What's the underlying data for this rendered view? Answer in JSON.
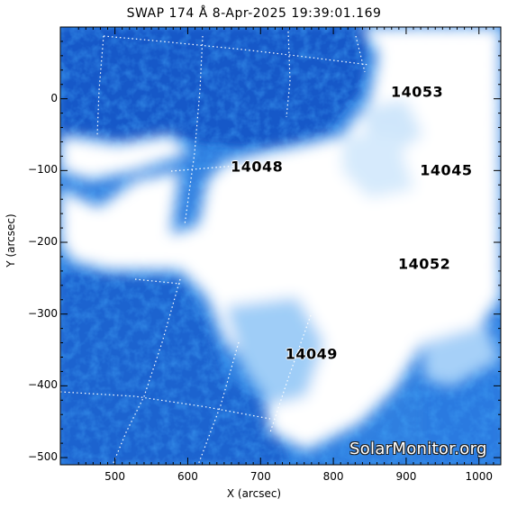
{
  "header": {
    "title": "SWAP 174 Å  8-Apr-2025 19:39:01.169"
  },
  "axes": {
    "xlabel": "X (arcsec)",
    "ylabel": "Y (arcsec)",
    "x_ticks": [
      "500",
      "600",
      "700",
      "800",
      "900",
      "1000"
    ],
    "y_ticks": [
      "0",
      "−100",
      "−200",
      "−300",
      "−400",
      "−500"
    ],
    "x_range": [
      425,
      1030
    ],
    "y_range": [
      -510,
      100
    ]
  },
  "regions": [
    {
      "id": "14053",
      "x": 915,
      "y": 10
    },
    {
      "id": "14048",
      "x": 695,
      "y": -95
    },
    {
      "id": "14045",
      "x": 955,
      "y": -100
    },
    {
      "id": "14052",
      "x": 925,
      "y": -230
    },
    {
      "id": "14049",
      "x": 770,
      "y": -355
    }
  ],
  "watermark": "SolarMonitor.org",
  "colors": {
    "dark": "#0d4fb8",
    "mid": "#3b87e3",
    "light": "#8fc3f5",
    "bright": "#ffffff"
  }
}
